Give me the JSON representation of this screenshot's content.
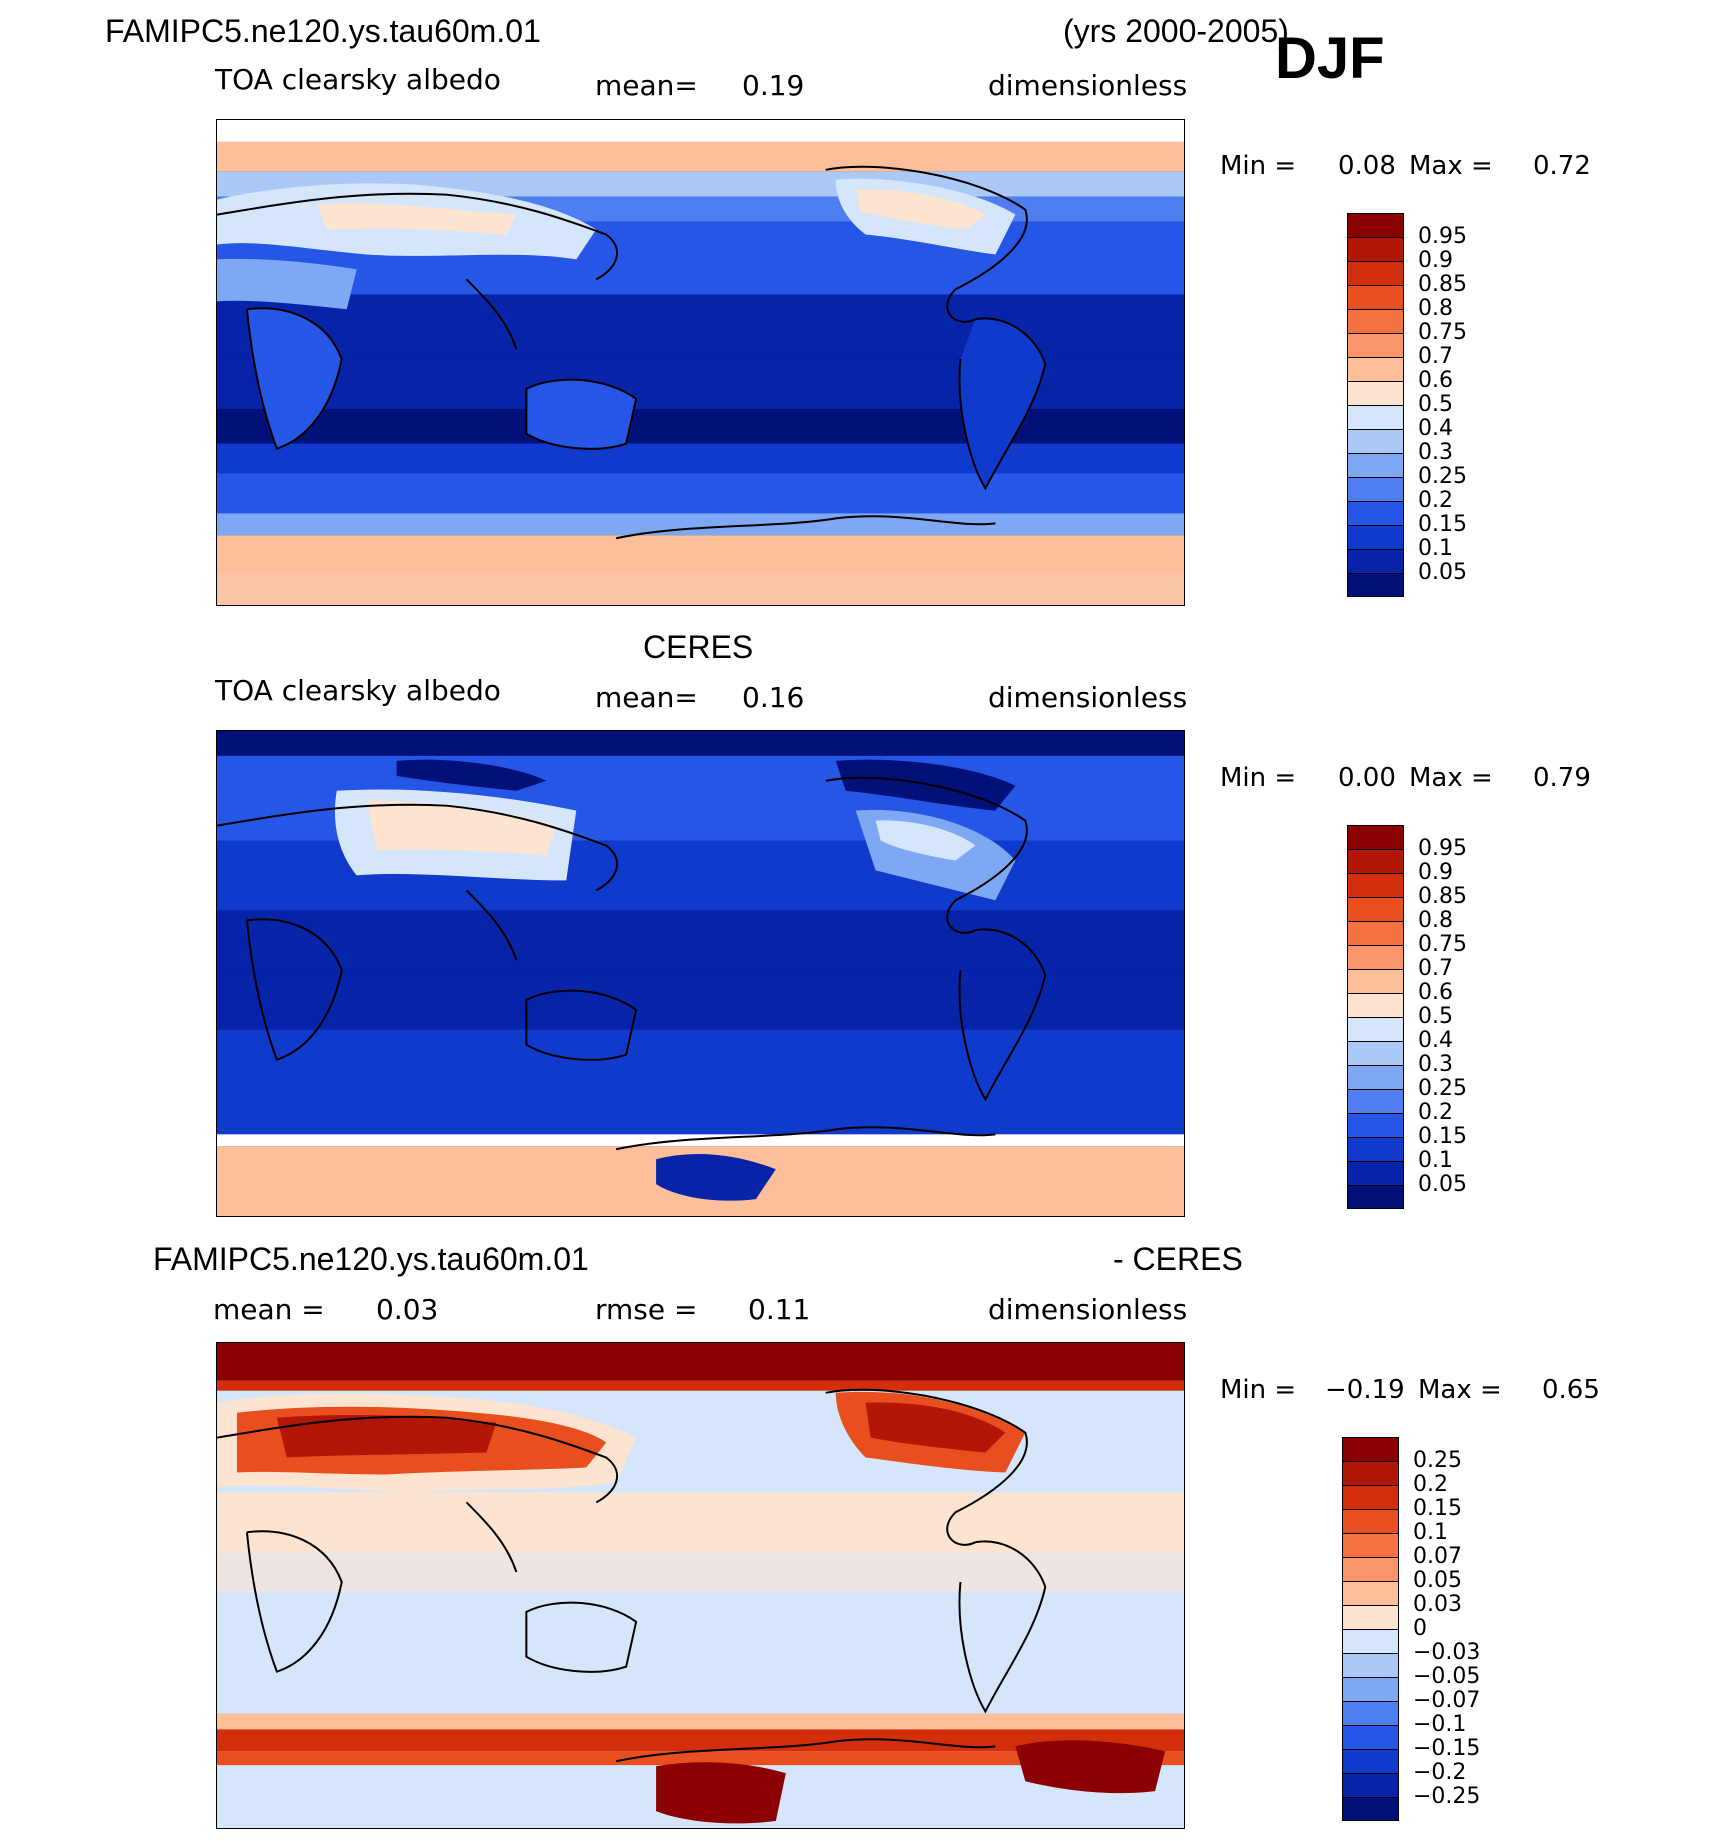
{
  "header": {
    "case_name": "FAMIPC5.ne120.ys.tau60m.01",
    "years": "(yrs 2000-2005)",
    "season": "DJF"
  },
  "panels": [
    {
      "id": "model",
      "title": "",
      "variable": "TOA clearsky albedo",
      "stat1_label": "mean=",
      "stat1_value": "0.19",
      "stat2_label": "",
      "stat2_value": "",
      "units": "dimensionless",
      "min_label": "Min =",
      "min_value": "0.08",
      "max_label": "Max =",
      "max_value": "0.72",
      "colorbar_labels": [
        "0.95",
        "0.9",
        "0.85",
        "0.8",
        "0.75",
        "0.7",
        "0.6",
        "0.5",
        "0.4",
        "0.3",
        "0.25",
        "0.2",
        "0.15",
        "0.1",
        "0.05"
      ]
    },
    {
      "id": "obs",
      "title": "CERES",
      "variable": "TOA clearsky albedo",
      "stat1_label": "mean=",
      "stat1_value": "0.16",
      "stat2_label": "",
      "stat2_value": "",
      "units": "dimensionless",
      "min_label": "Min =",
      "min_value": "0.00",
      "max_label": "Max =",
      "max_value": "0.79",
      "colorbar_labels": [
        "0.95",
        "0.9",
        "0.85",
        "0.8",
        "0.75",
        "0.7",
        "0.6",
        "0.5",
        "0.4",
        "0.3",
        "0.25",
        "0.2",
        "0.15",
        "0.1",
        "0.05"
      ]
    },
    {
      "id": "diff",
      "title_left": "FAMIPC5.ne120.ys.tau60m.01",
      "title_right": "- CERES",
      "stat1_label": "mean =",
      "stat1_value": "0.03",
      "stat2_label": "rmse =",
      "stat2_value": "0.11",
      "units": "dimensionless",
      "min_label": "Min =",
      "min_value": "−0.19",
      "max_label": "Max =",
      "max_value": "0.65",
      "colorbar_labels": [
        "0.25",
        "0.2",
        "0.15",
        "0.1",
        "0.07",
        "0.05",
        "0.03",
        "0",
        "−0.03",
        "−0.05",
        "−0.07",
        "−0.1",
        "−0.15",
        "−0.2",
        "−0.25"
      ]
    }
  ],
  "colors": {
    "abs_scale": [
      "#8b0000",
      "#b11607",
      "#d22e0a",
      "#e84e1e",
      "#f5713f",
      "#fb9468",
      "#fdbe9a",
      "#fde4d0",
      "#d5e6fb",
      "#aac9f7",
      "#7ea8f3",
      "#4f7ef0",
      "#2656e6",
      "#0f3acc",
      "#0723a8",
      "#02117a"
    ],
    "diff_scale": [
      "#8b0000",
      "#b11607",
      "#d22e0a",
      "#e84e1e",
      "#f5713f",
      "#fb9468",
      "#fdbe9a",
      "#fde4d0",
      "#d5e6fb",
      "#aac9f7",
      "#7ea8f3",
      "#4f7ef0",
      "#2656e6",
      "#0f3acc",
      "#0723a8",
      "#02117a"
    ]
  }
}
